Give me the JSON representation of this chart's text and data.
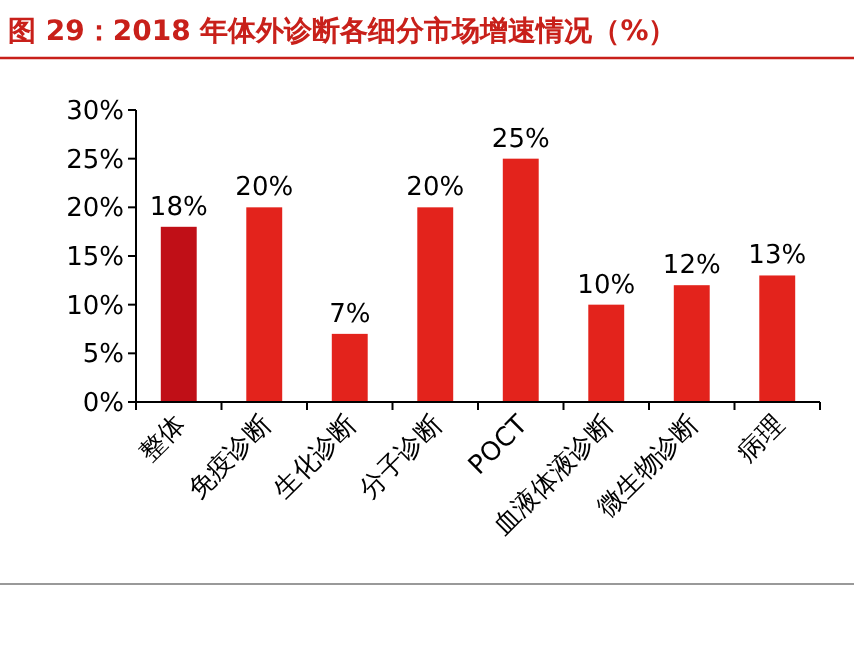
{
  "chart_data": {
    "type": "bar",
    "title": "图 29：2018 年体外诊断各细分市场增速情况（%）",
    "categories": [
      "整体",
      "免疫诊断",
      "生化诊断",
      "分子诊断",
      "POCT",
      "血液体液诊断",
      "微生物诊断",
      "病理"
    ],
    "values": [
      18,
      20,
      7,
      20,
      25,
      10,
      12,
      13
    ],
    "colors": [
      "#c00f17",
      "#e3231c",
      "#e3231c",
      "#e3231c",
      "#e3231c",
      "#e3231c",
      "#e3231c",
      "#e3231c"
    ],
    "value_labels": [
      "18%",
      "20%",
      "7%",
      "20%",
      "25%",
      "10%",
      "12%",
      "13%"
    ],
    "ylim": [
      0,
      30
    ],
    "yticks": [
      {
        "value": 0,
        "label": "0%"
      },
      {
        "value": 5,
        "label": "5%"
      },
      {
        "value": 10,
        "label": "10%"
      },
      {
        "value": 15,
        "label": "15%"
      },
      {
        "value": 20,
        "label": "20%"
      },
      {
        "value": 25,
        "label": "25%"
      },
      {
        "value": 30,
        "label": "30%"
      }
    ]
  }
}
